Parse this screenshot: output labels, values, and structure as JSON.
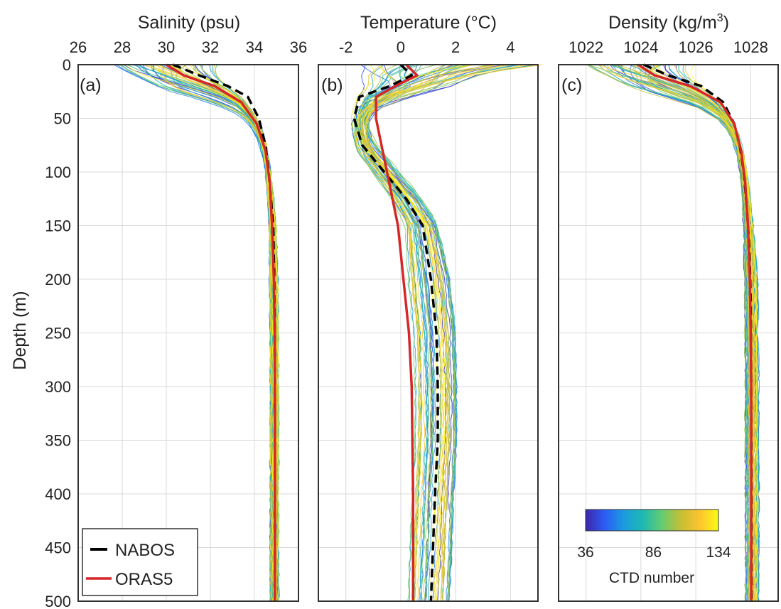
{
  "chart_data": [
    {
      "type": "line",
      "panel_label": "(a)",
      "xlabel": "Salinity (psu)",
      "ylabel": "Depth (m)",
      "xlim": [
        26,
        36
      ],
      "xticks": [
        26,
        28,
        30,
        32,
        34,
        36
      ],
      "ylim": [
        500,
        0
      ],
      "yticks": [
        0,
        50,
        100,
        150,
        200,
        250,
        300,
        350,
        400,
        450,
        500
      ],
      "x_axis_position": "top",
      "grid": true,
      "colorscale_series": {
        "name": "CTD profiles",
        "count_shown": 50,
        "color_by": "CTD number",
        "surface_range": [
          27.5,
          31.0
        ],
        "bottom_values": [
          34.7,
          35.1
        ]
      },
      "series": [
        {
          "name": "NABOS",
          "style": "dashed",
          "color": "#000000",
          "x": [
            30.3,
            31.5,
            32.8,
            33.7,
            34.2,
            34.5,
            34.65,
            34.75,
            34.85,
            34.9,
            34.92,
            34.93,
            34.93,
            34.93
          ],
          "y": [
            0,
            10,
            20,
            30,
            50,
            75,
            100,
            125,
            150,
            200,
            250,
            300,
            400,
            500
          ]
        },
        {
          "name": "ORAS5",
          "style": "solid",
          "color": "#d62728",
          "x": [
            30.0,
            30.8,
            32.2,
            33.4,
            34.1,
            34.5,
            34.7,
            34.8,
            34.88,
            34.92,
            34.93,
            34.93
          ],
          "y": [
            0,
            10,
            20,
            35,
            55,
            80,
            110,
            150,
            200,
            250,
            300,
            500
          ]
        }
      ],
      "legend": {
        "position": "bottom-left",
        "entries": [
          "NABOS",
          "ORAS5"
        ]
      }
    },
    {
      "type": "line",
      "panel_label": "(b)",
      "xlabel": "Temperature (°C)",
      "ylabel": "",
      "xlim": [
        -3,
        5
      ],
      "xticks": [
        -2,
        0,
        2,
        4
      ],
      "ylim": [
        500,
        0
      ],
      "yticks": [
        0,
        50,
        100,
        150,
        200,
        250,
        300,
        350,
        400,
        450,
        500
      ],
      "x_axis_position": "top",
      "grid": true,
      "colorscale_series": {
        "name": "CTD profiles",
        "count_shown": 50,
        "color_by": "CTD number",
        "surface_range": [
          -1.5,
          5.0
        ],
        "bottom_values": [
          0.2,
          1.8
        ]
      },
      "series": [
        {
          "name": "NABOS",
          "style": "dashed",
          "color": "#000000",
          "x": [
            0.0,
            0.4,
            -0.4,
            -1.5,
            -1.7,
            -1.4,
            -0.6,
            0.2,
            0.8,
            1.1,
            1.3,
            1.35,
            1.35,
            1.25,
            1.1
          ],
          "y": [
            0,
            10,
            20,
            30,
            50,
            75,
            100,
            125,
            150,
            200,
            250,
            300,
            350,
            400,
            500
          ]
        },
        {
          "name": "ORAS5",
          "style": "solid",
          "color": "#d62728",
          "x": [
            0.2,
            0.6,
            -0.2,
            -0.9,
            -0.9,
            -0.7,
            -0.5,
            -0.3,
            -0.1,
            0.1,
            0.3,
            0.4,
            0.45,
            0.45
          ],
          "y": [
            0,
            10,
            20,
            30,
            50,
            75,
            100,
            125,
            150,
            200,
            250,
            300,
            400,
            500
          ]
        }
      ]
    },
    {
      "type": "line",
      "panel_label": "(c)",
      "xlabel": "Density (kg/m",
      "xlabel_superscript": "3",
      "xlabel_suffix": ")",
      "ylabel": "",
      "xlim": [
        1021,
        1029
      ],
      "xticks": [
        1022,
        1024,
        1026,
        1028
      ],
      "ylim": [
        500,
        0
      ],
      "yticks": [
        0,
        50,
        100,
        150,
        200,
        250,
        300,
        350,
        400,
        450,
        500
      ],
      "x_axis_position": "top",
      "grid": true,
      "colorscale_series": {
        "name": "CTD profiles",
        "count_shown": 50,
        "color_by": "CTD number",
        "surface_range": [
          1022.0,
          1024.8
        ],
        "bottom_values": [
          1027.8,
          1028.3
        ]
      },
      "series": [
        {
          "name": "NABOS",
          "style": "dashed",
          "color": "#000000",
          "x": [
            1024.1,
            1025.0,
            1026.2,
            1027.0,
            1027.4,
            1027.6,
            1027.75,
            1027.85,
            1027.95,
            1028.0,
            1028.02,
            1028.03,
            1028.03
          ],
          "y": [
            0,
            10,
            20,
            35,
            55,
            75,
            100,
            130,
            170,
            220,
            300,
            400,
            500
          ]
        },
        {
          "name": "ORAS5",
          "style": "solid",
          "color": "#d62728",
          "x": [
            1023.9,
            1024.5,
            1025.8,
            1026.9,
            1027.4,
            1027.65,
            1027.8,
            1027.9,
            1027.97,
            1028.0,
            1028.02,
            1028.02
          ],
          "y": [
            0,
            10,
            20,
            35,
            55,
            80,
            110,
            150,
            200,
            250,
            300,
            500
          ]
        }
      ],
      "colorbar": {
        "label": "CTD number",
        "min": 36,
        "max": 134,
        "ticks": [
          36,
          86,
          134
        ],
        "colormap": [
          "#3e26a8",
          "#2c5cf6",
          "#1b9ae0",
          "#1cb9b2",
          "#64cc73",
          "#c3bf34",
          "#fdc32f",
          "#f9fb15"
        ]
      }
    }
  ]
}
